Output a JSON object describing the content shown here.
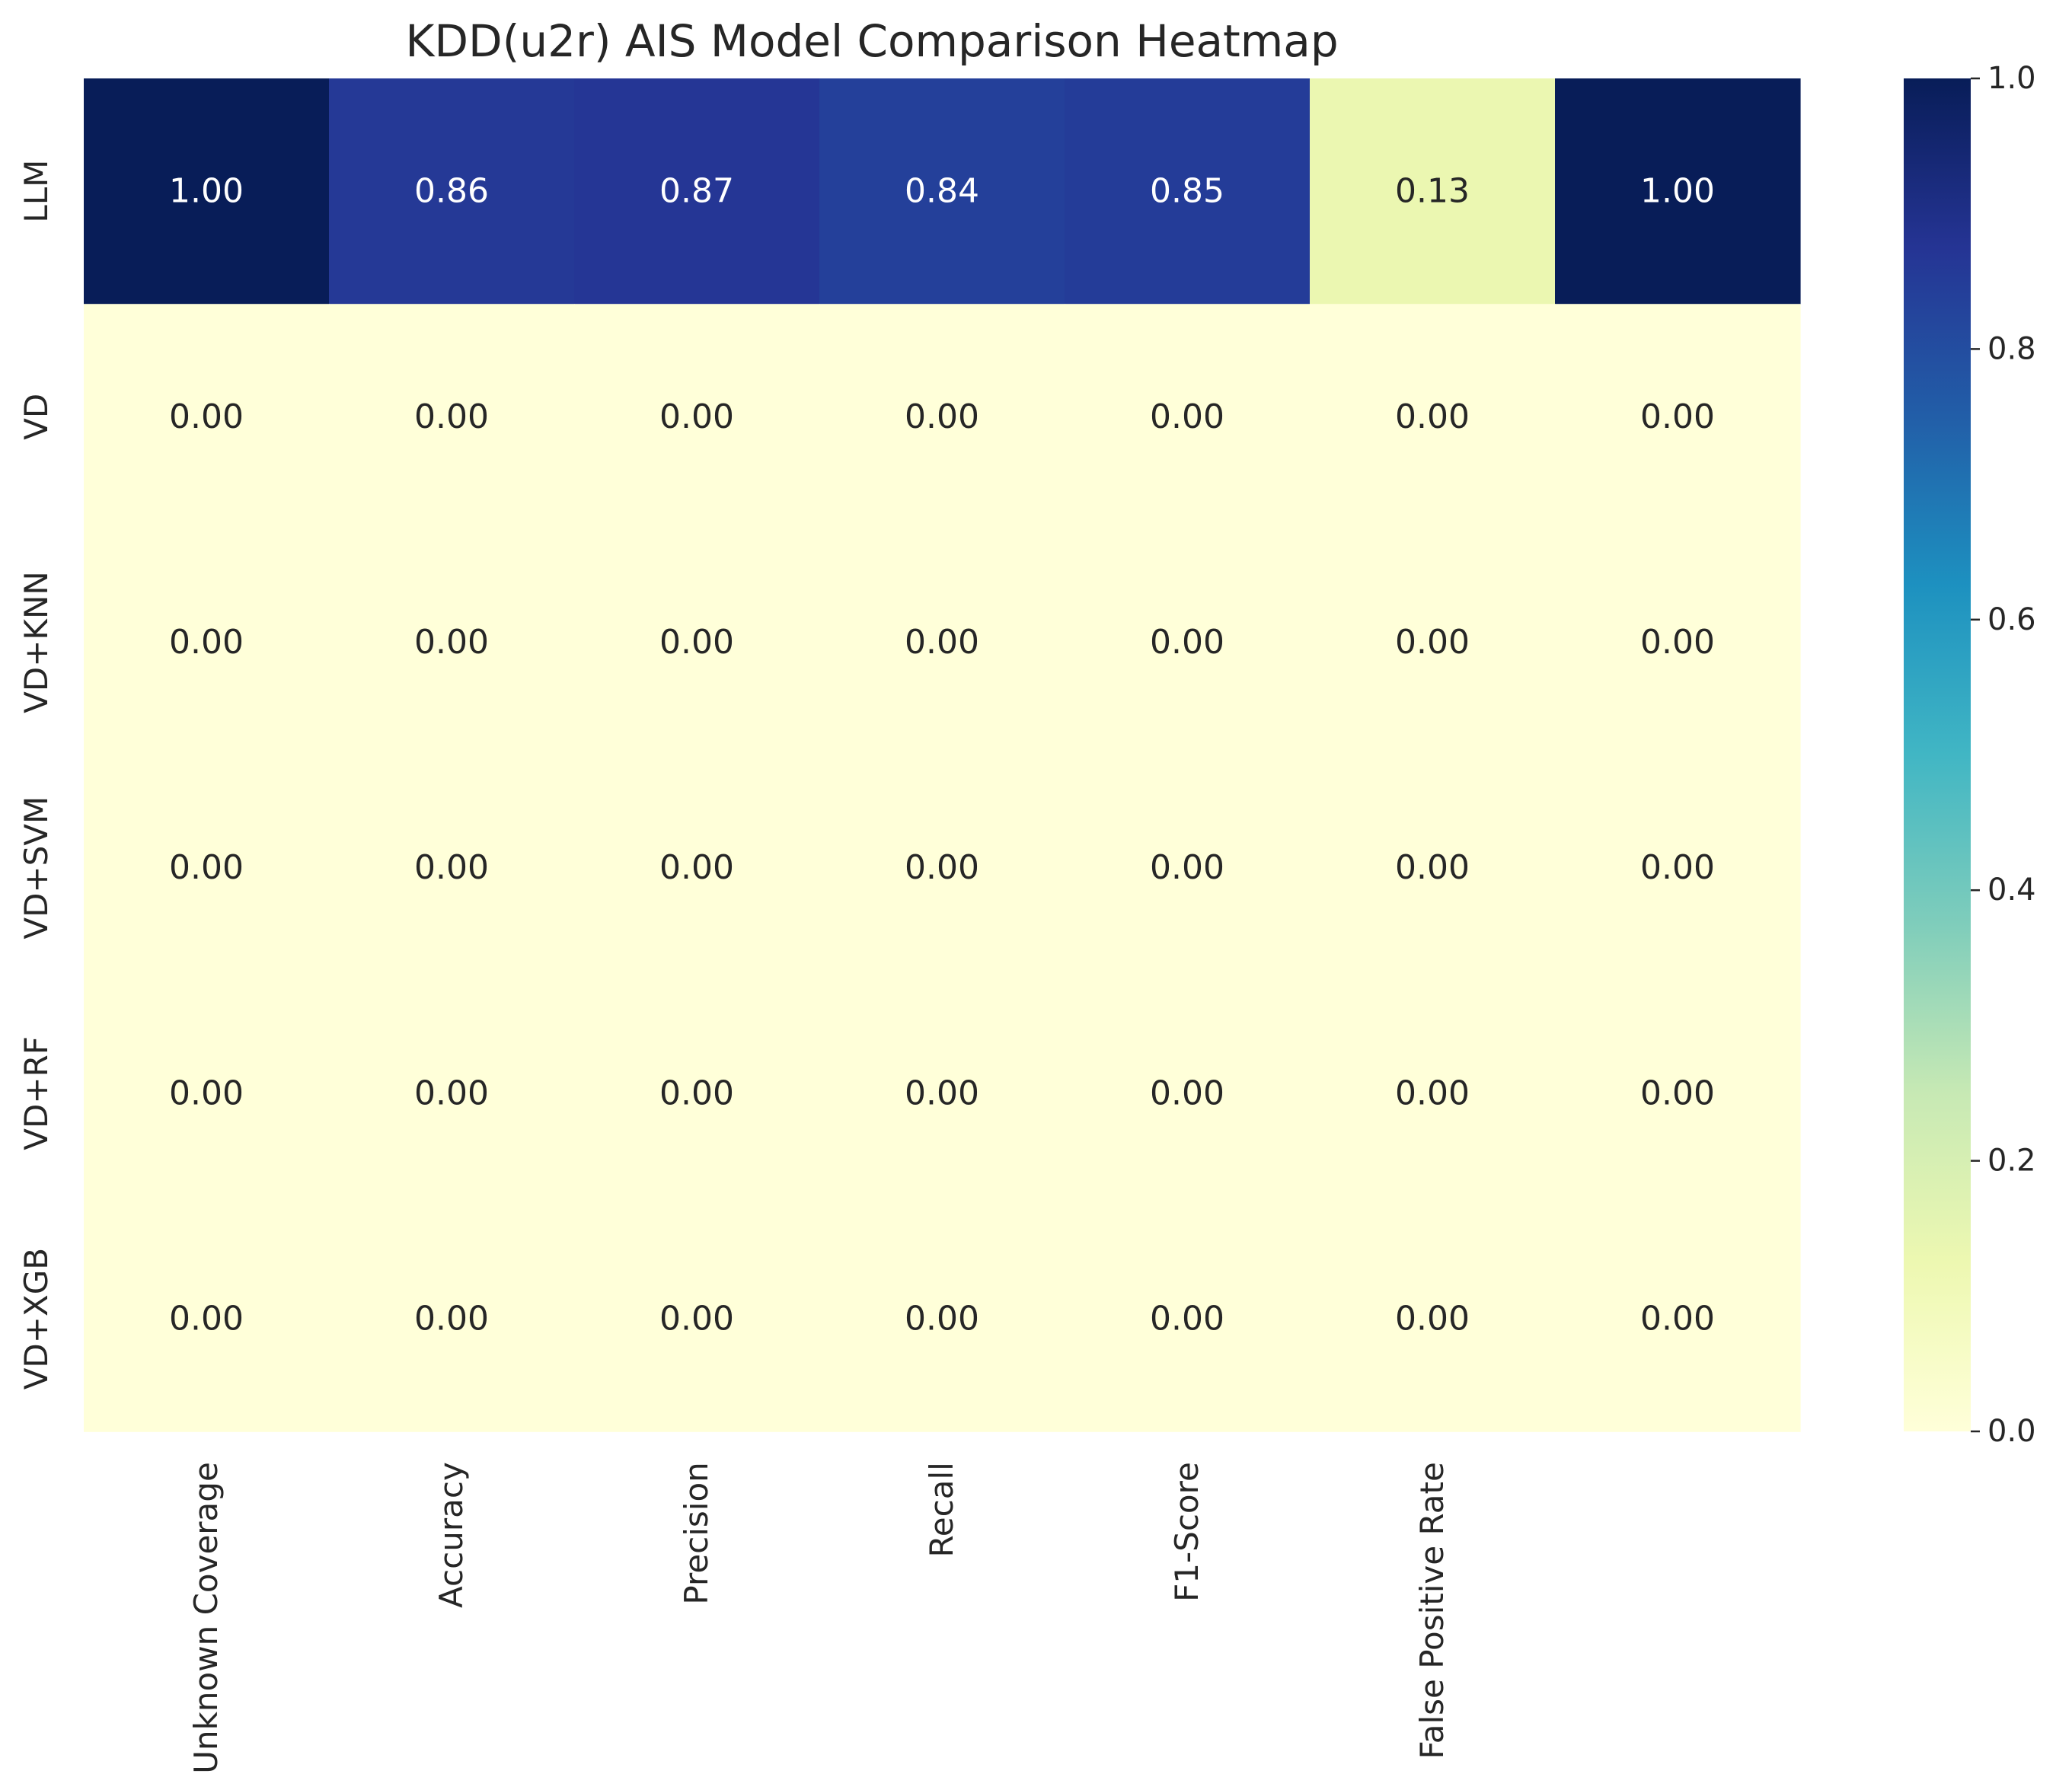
{
  "chart_data": {
    "type": "heatmap",
    "title": "KDD(u2r) AIS Model Comparison Heatmap",
    "columns": [
      "Unknown Coverage",
      "Accuracy",
      "Precision",
      "Recall",
      "F1-Score",
      "False Positive Rate",
      ""
    ],
    "rows": [
      "LLM",
      "VD",
      "VD+KNN",
      "VD+SVM",
      "VD+RF",
      "VD+XGB"
    ],
    "values": [
      [
        1.0,
        0.86,
        0.87,
        0.84,
        0.85,
        0.13,
        1.0
      ],
      [
        0.0,
        0.0,
        0.0,
        0.0,
        0.0,
        0.0,
        0.0
      ],
      [
        0.0,
        0.0,
        0.0,
        0.0,
        0.0,
        0.0,
        0.0
      ],
      [
        0.0,
        0.0,
        0.0,
        0.0,
        0.0,
        0.0,
        0.0
      ],
      [
        0.0,
        0.0,
        0.0,
        0.0,
        0.0,
        0.0,
        0.0
      ],
      [
        0.0,
        0.0,
        0.0,
        0.0,
        0.0,
        0.0,
        0.0
      ]
    ],
    "value_format": "0.00",
    "colormap": "YlGnBu",
    "vmin": 0.0,
    "vmax": 1.0,
    "colorbar_ticks": [
      "0.0",
      "0.2",
      "0.4",
      "0.6",
      "0.8",
      "1.0"
    ]
  }
}
